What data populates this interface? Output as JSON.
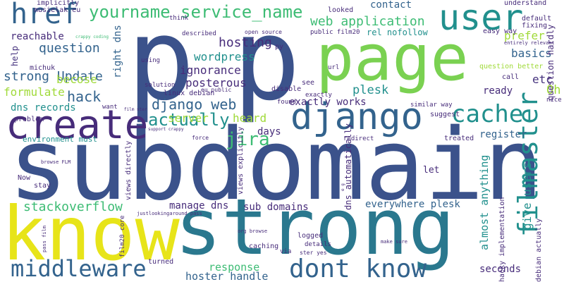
{
  "palette": {
    "dark-blue": "#3b528b",
    "indigo": "#472c7a",
    "purple": "#46337e",
    "teal": "#2a788e",
    "blue-teal": "#33638d",
    "green-teal": "#21908d",
    "green": "#3dbc74",
    "light-green": "#7ad151",
    "lime": "#a0da39",
    "yellow": "#e7e419",
    "background": "#ffffff"
  },
  "words": [
    {
      "text": "p",
      "color": "#3b528b"
    },
    {
      "text": "p",
      "color": "#3b528b"
    },
    {
      "text": "page",
      "color": "#7ad151"
    },
    {
      "text": "subdomain",
      "color": "#3b528b"
    },
    {
      "text": "strong",
      "color": "#2a788e"
    },
    {
      "text": "know",
      "color": "#e7e419"
    },
    {
      "text": "create",
      "color": "#472c7a"
    },
    {
      "text": "django",
      "color": "#33638d"
    },
    {
      "text": "user",
      "color": "#21908d"
    },
    {
      "text": "href",
      "color": "#33638d"
    },
    {
      "text": "cache",
      "color": "#21908d"
    },
    {
      "text": "filmaster",
      "color": "#21908d"
    },
    {
      "text": "dont know",
      "color": "#33638d"
    },
    {
      "text": "middleware",
      "color": "#33638d"
    },
    {
      "text": "yourname service_name",
      "color": "#3dbc74"
    },
    {
      "text": "jira",
      "color": "#3dbc74"
    },
    {
      "text": "web application",
      "color": "#3dbc74"
    },
    {
      "text": "django web",
      "color": "#33638d"
    },
    {
      "text": "actually",
      "color": "#21908d"
    },
    {
      "text": "stackoverflow",
      "color": "#3dbc74"
    },
    {
      "text": "question",
      "color": "#33638d"
    },
    {
      "text": "hosting",
      "color": "#472c7a"
    },
    {
      "text": "strong Update",
      "color": "#33638d"
    },
    {
      "text": "hack",
      "color": "#33638d"
    },
    {
      "text": "wordpress",
      "color": "#21908d"
    },
    {
      "text": "ignorance",
      "color": "#472c7a"
    },
    {
      "text": "posterous",
      "color": "#472c7a"
    },
    {
      "text": "becose",
      "color": "#a0da39"
    },
    {
      "text": "formulate",
      "color": "#a0da39"
    },
    {
      "text": "dns records",
      "color": "#21908d"
    },
    {
      "text": "plesk",
      "color": "#21908d"
    },
    {
      "text": "exactly works",
      "color": "#472c7a"
    },
    {
      "text": "heard",
      "color": "#a0da39"
    },
    {
      "text": "server",
      "color": "#a0da39"
    },
    {
      "text": "days",
      "color": "#472c7a"
    },
    {
      "text": "register",
      "color": "#33638d"
    },
    {
      "text": "contact",
      "color": "#33638d"
    },
    {
      "text": "basics",
      "color": "#33638d"
    },
    {
      "text": "prefer",
      "color": "#a0da39"
    },
    {
      "text": "ready",
      "color": "#472c7a"
    },
    {
      "text": "etc",
      "color": "#46337e"
    },
    {
      "text": "Oh",
      "color": "#a0da39"
    },
    {
      "text": "give users",
      "color": "#21908d"
    },
    {
      "text": "almost anything",
      "color": "#21908d"
    },
    {
      "text": "sub domains",
      "color": "#472c7a"
    },
    {
      "text": "manage dns",
      "color": "#472c7a"
    },
    {
      "text": "everywhere plesk",
      "color": "#33638d"
    },
    {
      "text": "response",
      "color": "#3dbc74"
    },
    {
      "text": "hoster handle",
      "color": "#33638d"
    },
    {
      "text": "seconds",
      "color": "#472c7a"
    },
    {
      "text": "reachable",
      "color": "#472c7a"
    },
    {
      "text": "rel nofollow",
      "color": "#21908d"
    },
    {
      "text": "right dns",
      "color": "#33638d"
    },
    {
      "text": "environment must",
      "color": "#21908d"
    },
    {
      "text": "implicitly",
      "color": "#472c7a"
    },
    {
      "text": "musielak eu",
      "color": "#472c7a"
    },
    {
      "text": "help",
      "color": "#46337e"
    },
    {
      "text": "question better",
      "color": "#a0da39"
    },
    {
      "text": "question hardly",
      "color": "#472c7a"
    },
    {
      "text": "understand",
      "color": "#472c7a"
    },
    {
      "text": "default",
      "color": "#472c7a"
    },
    {
      "text": "fixing",
      "color": "#472c7a"
    },
    {
      "text": "easy way",
      "color": "#472c7a"
    },
    {
      "text": "looked",
      "color": "#472c7a"
    },
    {
      "text": "public film20",
      "color": "#472c7a"
    },
    {
      "text": "open source",
      "color": "#472c7a"
    },
    {
      "text": "think",
      "color": "#472c7a"
    },
    {
      "text": "described",
      "color": "#472c7a"
    },
    {
      "text": "crappy coding",
      "color": "#3dbc74"
    },
    {
      "text": "michuk",
      "color": "#472c7a"
    },
    {
      "text": "py",
      "color": "#472c7a"
    },
    {
      "text": "using",
      "color": "#472c7a"
    },
    {
      "text": "url",
      "color": "#472c7a"
    },
    {
      "text": "call",
      "color": "#472c7a"
    },
    {
      "text": "entirely relevant",
      "color": "#472c7a"
    },
    {
      "text": "solution",
      "color": "#472c7a"
    },
    {
      "text": "linux debian",
      "color": "#472c7a"
    },
    {
      "text": "eu public",
      "color": "#472c7a"
    },
    {
      "text": "see",
      "color": "#472c7a"
    },
    {
      "text": "disable",
      "color": "#472c7a"
    },
    {
      "text": "exactly",
      "color": "#472c7a"
    },
    {
      "text": "found",
      "color": "#472c7a"
    },
    {
      "text": "nice",
      "color": "#472c7a"
    },
    {
      "text": "similar way",
      "color": "#472c7a"
    },
    {
      "text": "suggest",
      "color": "#472c7a"
    },
    {
      "text": "problem",
      "color": "#472c7a"
    },
    {
      "text": "want",
      "color": "#472c7a"
    },
    {
      "text": "film ster",
      "color": "#472c7a"
    },
    {
      "text": "support crappy",
      "color": "#472c7a"
    },
    {
      "text": "force",
      "color": "#472c7a"
    },
    {
      "text": "treated",
      "color": "#472c7a"
    },
    {
      "text": "redirect",
      "color": "#472c7a"
    },
    {
      "text": "dns automatically",
      "color": "#472c7a"
    },
    {
      "text": "views explicitly",
      "color": "#472c7a"
    },
    {
      "text": "views directly",
      "color": "#472c7a"
    },
    {
      "text": "browse FLM",
      "color": "#472c7a"
    },
    {
      "text": "Now",
      "color": "#472c7a"
    },
    {
      "text": "stay",
      "color": "#472c7a"
    },
    {
      "text": "let",
      "color": "#472c7a"
    },
    {
      "text": "e g",
      "color": "#472c7a"
    },
    {
      "text": "justlookingaround pass",
      "color": "#472c7a"
    },
    {
      "text": "film20 core",
      "color": "#472c7a"
    },
    {
      "text": "pass film",
      "color": "#472c7a"
    },
    {
      "text": "org browse",
      "color": "#472c7a"
    },
    {
      "text": "logged",
      "color": "#472c7a"
    },
    {
      "text": "details",
      "color": "#472c7a"
    },
    {
      "text": "caching",
      "color": "#472c7a"
    },
    {
      "text": "via",
      "color": "#472c7a"
    },
    {
      "text": "ster yes",
      "color": "#472c7a"
    },
    {
      "text": "make sure",
      "color": "#472c7a"
    },
    {
      "text": "turned",
      "color": "#472c7a"
    },
    {
      "text": "hacky implementation",
      "color": "#472c7a"
    },
    {
      "text": "debian actually",
      "color": "#472c7a"
    }
  ]
}
